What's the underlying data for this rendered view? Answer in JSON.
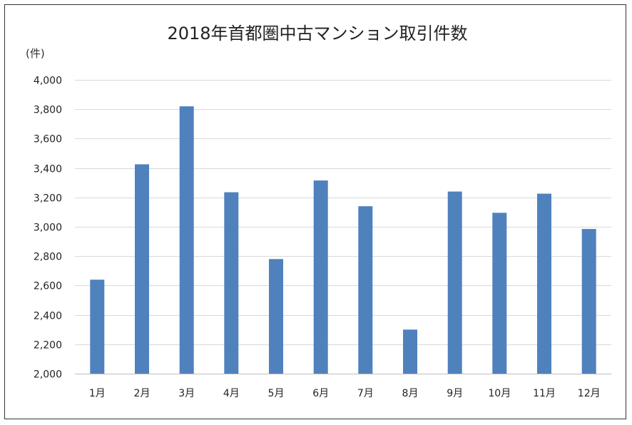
{
  "chart_data": {
    "type": "bar",
    "title": "2018年首都圏中古マンション取引件数",
    "ylabel": "(件)",
    "xlabel": "",
    "categories": [
      "1月",
      "2月",
      "3月",
      "4月",
      "5月",
      "6月",
      "7月",
      "8月",
      "9月",
      "10月",
      "11月",
      "12月"
    ],
    "values": [
      2640,
      3425,
      3820,
      3235,
      2780,
      3315,
      3140,
      2300,
      3240,
      3095,
      3225,
      2985
    ],
    "ylim": [
      2000,
      4000
    ],
    "yticks": [
      2000,
      2200,
      2400,
      2600,
      2800,
      3000,
      3200,
      3400,
      3600,
      3800,
      4000
    ],
    "ytick_labels": [
      "2,000",
      "2,200",
      "2,400",
      "2,600",
      "2,800",
      "3,000",
      "3,200",
      "3,400",
      "3,600",
      "3,800",
      "4,000"
    ],
    "grid": true,
    "legend": "none",
    "bar_color": "#4f81bd"
  }
}
